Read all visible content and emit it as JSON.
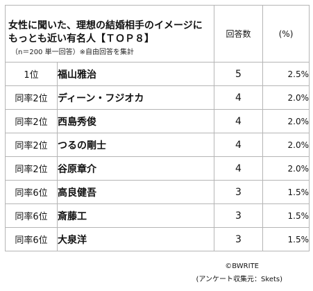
{
  "table": {
    "title_line1": "女性に聞いた、理想の結婚相手のイメージに",
    "title_line2": "もっとも近い有名人【ＴＯＰ８】",
    "note": "（n＝200 単一回答）※自由回答を集計",
    "col_count": "回答数",
    "col_pct": "(%)",
    "rows": [
      {
        "rank": "1位",
        "name": "福山雅治",
        "count": "5",
        "pct": "2.5%"
      },
      {
        "rank": "同率2位",
        "name": "ディーン・フジオカ",
        "count": "4",
        "pct": "2.0%"
      },
      {
        "rank": "同率2位",
        "name": "西島秀俊",
        "count": "4",
        "pct": "2.0%"
      },
      {
        "rank": "同率2位",
        "name": "つるの剛士",
        "count": "4",
        "pct": "2.0%"
      },
      {
        "rank": "同率2位",
        "name": "谷原章介",
        "count": "4",
        "pct": "2.0%"
      },
      {
        "rank": "同率6位",
        "name": "高良健吾",
        "count": "3",
        "pct": "1.5%"
      },
      {
        "rank": "同率6位",
        "name": "斎藤工",
        "count": "3",
        "pct": "1.5%"
      },
      {
        "rank": "同率6位",
        "name": "大泉洋",
        "count": "3",
        "pct": "1.5%"
      }
    ]
  },
  "footer": {
    "copyright": "©BWRITE",
    "source": "(アンケート収集元：Skets)"
  }
}
